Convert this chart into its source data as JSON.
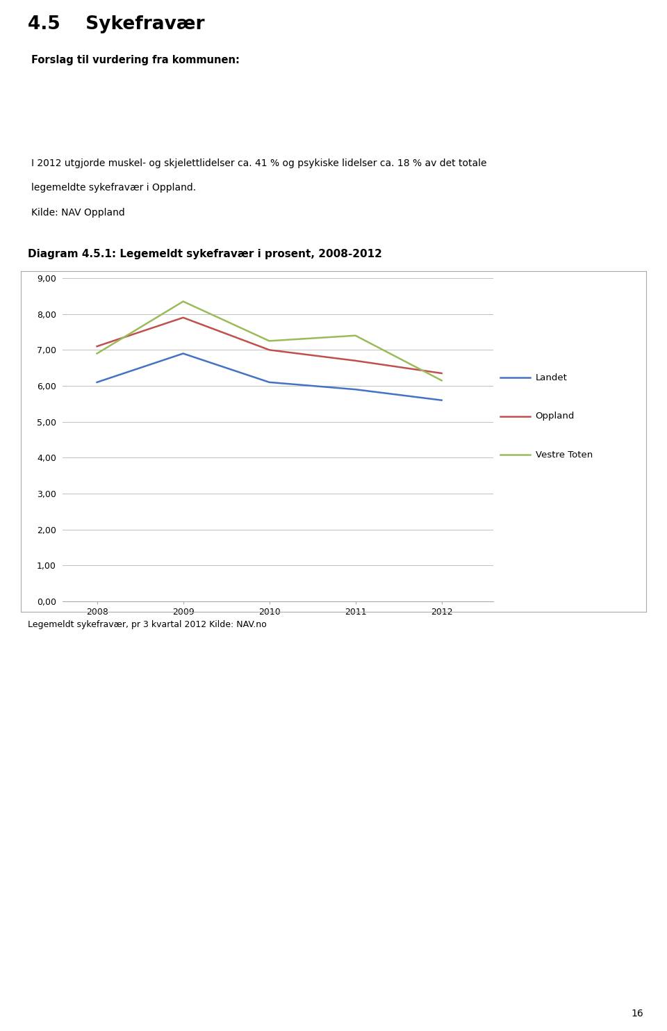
{
  "title_section_num": "4.5",
  "title_section_name": "Sykefravær",
  "blue_box_text": "Forslag til vurdering fra kommunen:",
  "blue_box_color": "#c9d9ed",
  "gray_box_line1": "I 2012 utgjorde muskel- og skjelettlidelser ca. 41 % og psykiske lidelser ca. 18 % av det totale",
  "gray_box_line2": "legemeldte sykefravær i Oppland.",
  "gray_box_line3": "Kilde: NAV Oppland",
  "gray_box_color": "#d9d9d9",
  "diagram_title": "Diagram 4.5.1: Legemeldt sykefravær i prosent, 2008-2012",
  "caption": "Legemeldt sykefravær, pr 3 kvartal 2012 Kilde: NAV.no",
  "years": [
    2008,
    2009,
    2010,
    2011,
    2012
  ],
  "landet": [
    6.1,
    6.9,
    6.1,
    5.9,
    5.6
  ],
  "oppland": [
    7.1,
    7.9,
    7.0,
    6.7,
    6.35
  ],
  "vestre_toten": [
    6.9,
    8.35,
    7.25,
    7.4,
    6.15
  ],
  "landet_color": "#4472c4",
  "oppland_color": "#c0504d",
  "vestre_toten_color": "#9bbb59",
  "ylim_min": 0,
  "ylim_max": 9,
  "yticks": [
    0.0,
    1.0,
    2.0,
    3.0,
    4.0,
    5.0,
    6.0,
    7.0,
    8.0,
    9.0
  ],
  "ytick_labels": [
    "0,00",
    "1,00",
    "2,00",
    "3,00",
    "4,00",
    "5,00",
    "6,00",
    "7,00",
    "8,00",
    "9,00"
  ],
  "chart_bg_color": "#ffffff",
  "page_bg_color": "#ffffff",
  "legend_labels": [
    "Landet",
    "Oppland",
    "Vestre Toten"
  ],
  "page_number": "16",
  "border_color": "#aaaaaa",
  "grid_color": "#c0c0c0"
}
